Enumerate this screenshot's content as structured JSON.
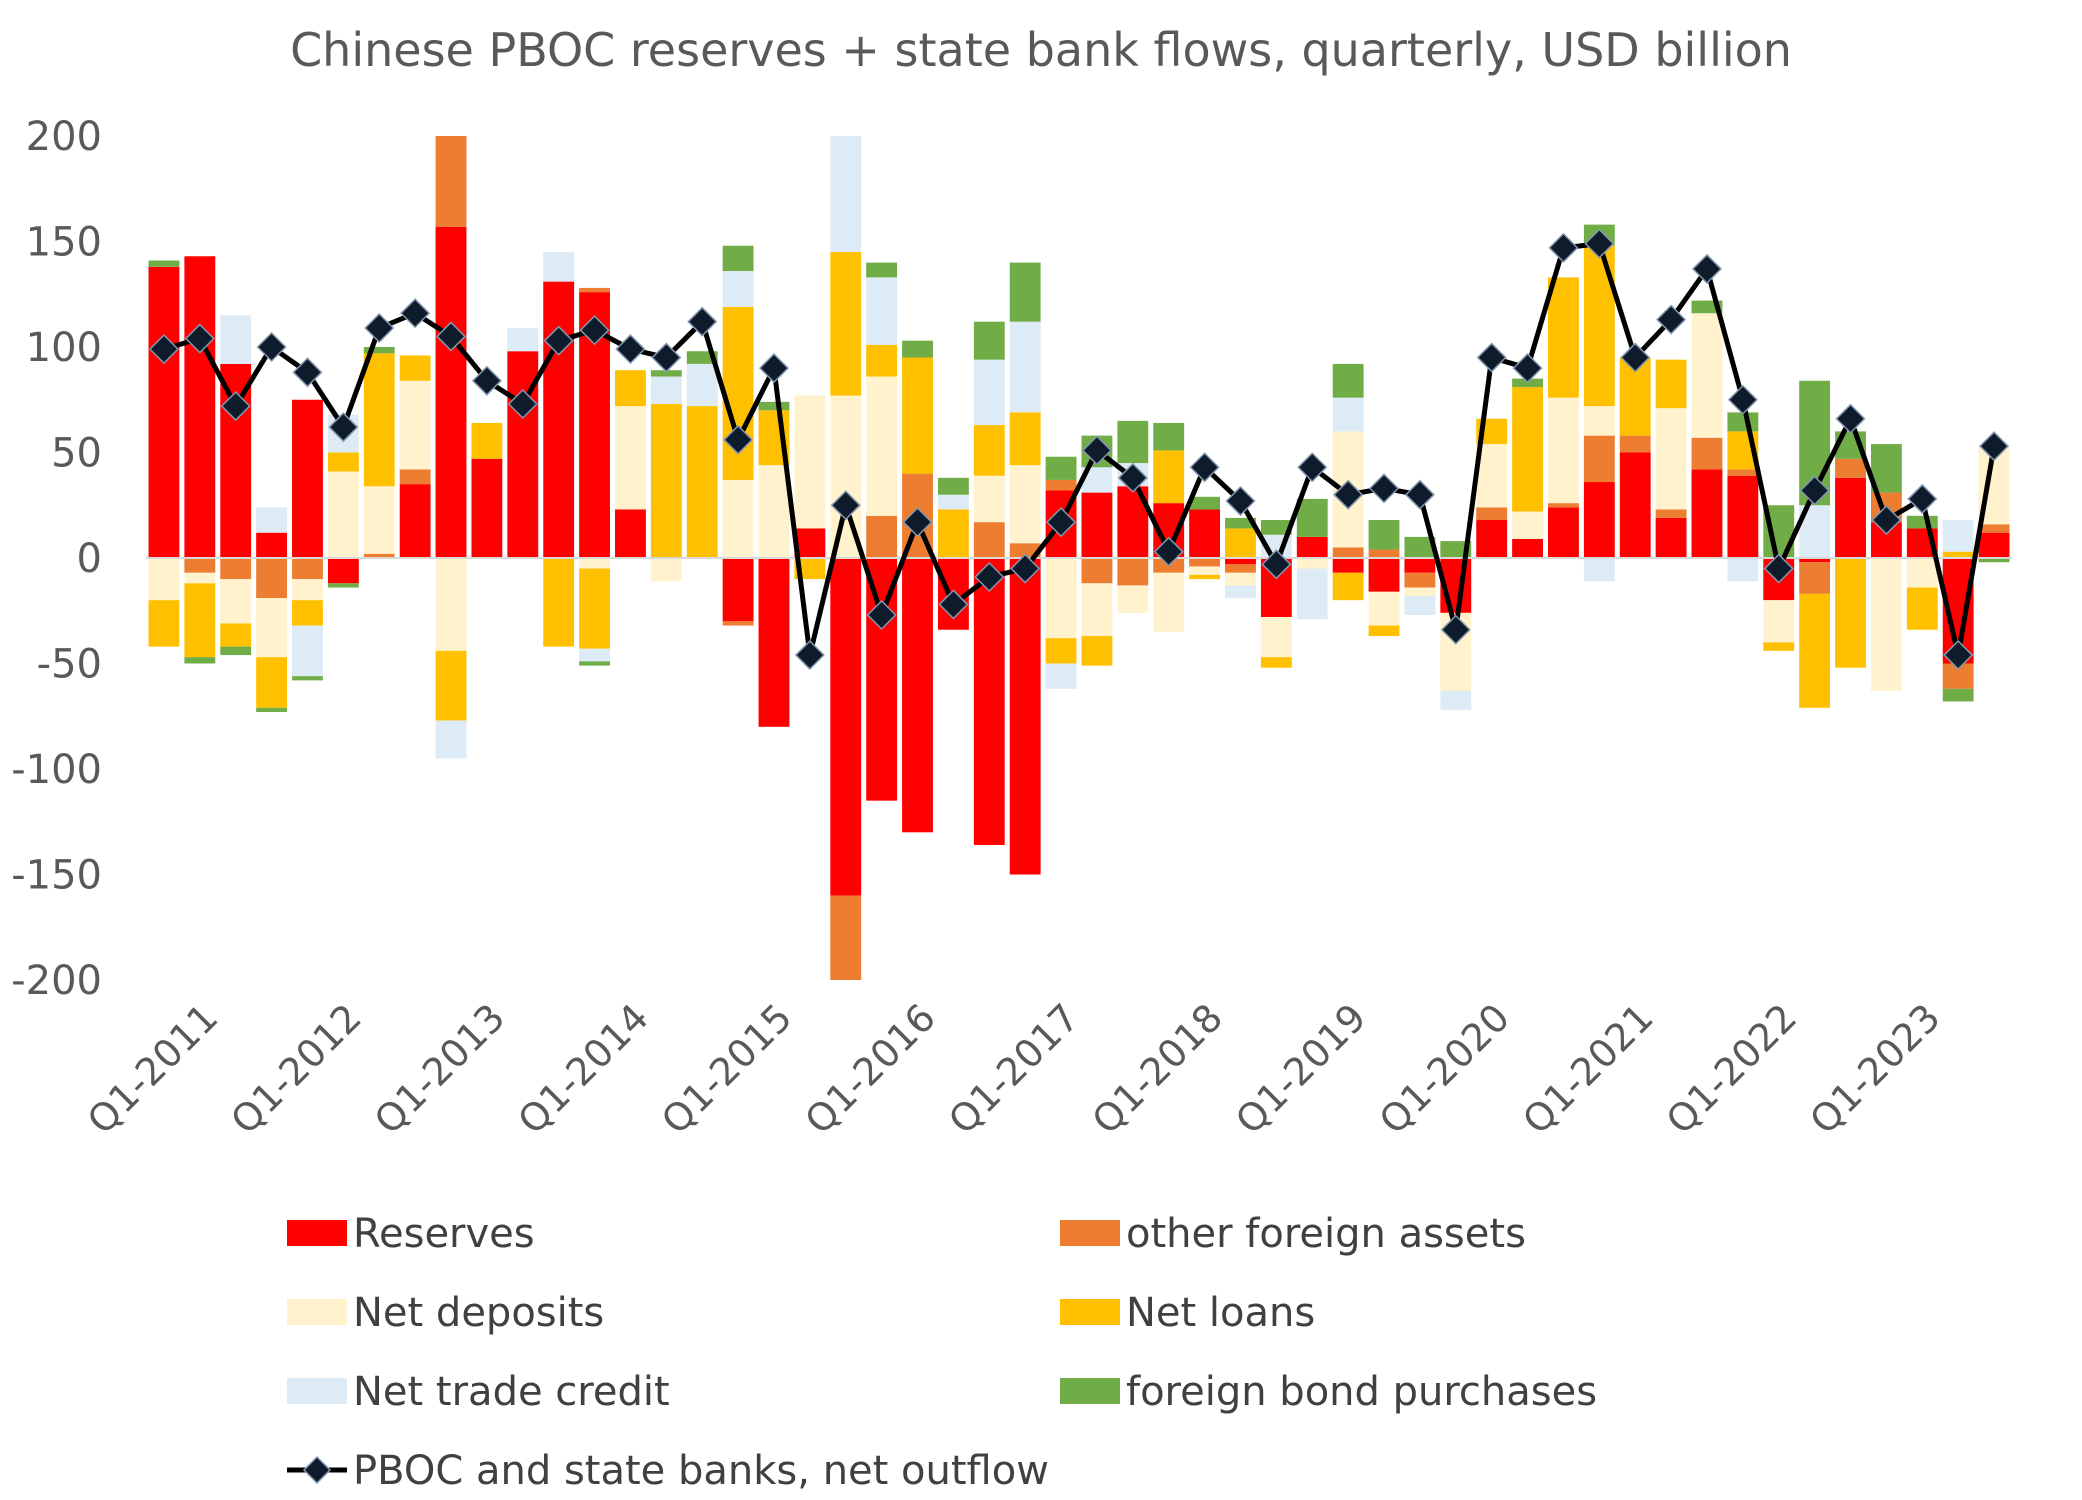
{
  "chart_data": {
    "type": "bar",
    "stacked": true,
    "title": "Chinese PBOC reserves + state bank flows, quarterly, USD billion",
    "xlabel": "",
    "ylabel": "",
    "ylim": [
      -200,
      200
    ],
    "yticks": [
      200,
      150,
      100,
      50,
      0,
      -50,
      -100,
      -150,
      -200
    ],
    "categories": [
      "Q1-2011",
      "Q2-2011",
      "Q3-2011",
      "Q4-2011",
      "Q1-2012",
      "Q2-2012",
      "Q3-2012",
      "Q4-2012",
      "Q1-2013",
      "Q2-2013",
      "Q3-2013",
      "Q4-2013",
      "Q1-2014",
      "Q2-2014",
      "Q3-2014",
      "Q4-2014",
      "Q1-2015",
      "Q2-2015",
      "Q3-2015",
      "Q4-2015",
      "Q1-2016",
      "Q2-2016",
      "Q3-2016",
      "Q4-2016",
      "Q1-2017",
      "Q2-2017",
      "Q3-2017",
      "Q4-2017",
      "Q1-2018",
      "Q2-2018",
      "Q3-2018",
      "Q4-2018",
      "Q1-2019",
      "Q2-2019",
      "Q3-2019",
      "Q4-2019",
      "Q1-2020",
      "Q2-2020",
      "Q3-2020",
      "Q4-2020",
      "Q1-2021",
      "Q2-2021",
      "Q3-2021",
      "Q4-2021",
      "Q1-2022",
      "Q2-2022",
      "Q3-2022",
      "Q4-2022",
      "Q1-2023",
      "Q2-2023",
      "Q3-2023",
      "Q4-2023"
    ],
    "xtick_labels": [
      "Q1-2011",
      "Q1-2012",
      "Q1-2013",
      "Q1-2014",
      "Q1-2015",
      "Q1-2016",
      "Q1-2017",
      "Q1-2018",
      "Q1-2019",
      "Q1-2020",
      "Q1-2021",
      "Q1-2022",
      "Q1-2023"
    ],
    "series": [
      {
        "name": "Reserves",
        "color": "#ff0000",
        "values": [
          138,
          143,
          92,
          12,
          75,
          -12,
          0,
          35,
          157,
          47,
          98,
          131,
          126,
          23,
          0,
          0,
          -30,
          -80,
          14,
          -160,
          -115,
          -130,
          -34,
          -136,
          -150,
          32,
          31,
          34,
          26,
          23,
          -3,
          -28,
          10,
          -7,
          -16,
          -7,
          -26,
          18,
          9,
          24,
          36,
          50,
          19,
          42,
          39,
          -20,
          -2,
          38,
          17,
          14,
          -50,
          12
        ]
      },
      {
        "name": "other foreign assets",
        "color": "#ed7d31",
        "values": [
          0,
          -7,
          -10,
          -19,
          -10,
          0,
          2,
          7,
          43,
          0,
          0,
          0,
          2,
          0,
          0,
          0,
          -2,
          0,
          0,
          -40,
          20,
          40,
          0,
          17,
          7,
          5,
          -12,
          -13,
          -7,
          -4,
          -4,
          0,
          0,
          5,
          4,
          -7,
          0,
          6,
          0,
          2,
          22,
          8,
          4,
          15,
          3,
          0,
          -15,
          9,
          14,
          0,
          -12,
          4
        ]
      },
      {
        "name": "Net deposits",
        "color": "#fff2cc",
        "values": [
          -20,
          -5,
          -21,
          -28,
          -10,
          41,
          32,
          42,
          -44,
          0,
          0,
          0,
          -5,
          49,
          -11,
          0,
          37,
          44,
          63,
          77,
          66,
          0,
          0,
          22,
          37,
          -38,
          -25,
          -13,
          -28,
          -4,
          -6,
          -19,
          -5,
          55,
          -16,
          -4,
          -37,
          30,
          13,
          50,
          14,
          0,
          48,
          59,
          0,
          -20,
          0,
          0,
          -63,
          -14,
          0,
          37
        ]
      },
      {
        "name": "Net loans",
        "color": "#ffc000",
        "values": [
          -22,
          -35,
          -11,
          -24,
          -12,
          9,
          63,
          12,
          -33,
          17,
          0,
          -42,
          -38,
          17,
          73,
          72,
          82,
          26,
          -10,
          68,
          15,
          55,
          23,
          24,
          25,
          -12,
          -14,
          0,
          25,
          -2,
          14,
          -5,
          0,
          -13,
          -5,
          0,
          0,
          12,
          59,
          57,
          76,
          37,
          23,
          0,
          18,
          -4,
          -54,
          -52,
          0,
          -20,
          3,
          0
        ]
      },
      {
        "name": "Net trade credit",
        "color": "#ddebf7",
        "values": [
          0,
          0,
          23,
          12,
          -24,
          18,
          0,
          0,
          -18,
          0,
          11,
          14,
          -6,
          0,
          13,
          20,
          17,
          0,
          0,
          55,
          32,
          0,
          7,
          31,
          43,
          -12,
          12,
          11,
          0,
          0,
          -6,
          11,
          -24,
          16,
          0,
          -9,
          -9,
          0,
          0,
          0,
          -11,
          0,
          0,
          0,
          -11,
          0,
          25,
          0,
          0,
          0,
          15,
          0
        ]
      },
      {
        "name": "foreign bond purchases",
        "color": "#70ad47",
        "values": [
          3,
          -3,
          -4,
          -2,
          -2,
          -2,
          3,
          0,
          0,
          0,
          0,
          0,
          -2,
          0,
          3,
          6,
          12,
          4,
          0,
          0,
          7,
          8,
          8,
          18,
          28,
          11,
          15,
          20,
          13,
          6,
          5,
          7,
          18,
          16,
          14,
          10,
          8,
          0,
          4,
          0,
          10,
          0,
          0,
          6,
          9,
          25,
          59,
          13,
          23,
          6,
          -6,
          -2
        ]
      }
    ],
    "line": {
      "name": "PBOC and state banks, net outflow",
      "color": "#000000",
      "marker_color": "#0d1b2a",
      "values": [
        99,
        104,
        72,
        100,
        88,
        62,
        109,
        116,
        105,
        84,
        73,
        103,
        108,
        99,
        95,
        112,
        56,
        90,
        -46,
        25,
        -27,
        17,
        -22,
        -9,
        -5,
        17,
        51,
        38,
        3,
        43,
        27,
        -3,
        43,
        30,
        33,
        30,
        -34,
        95,
        90,
        147,
        149,
        95,
        113,
        137,
        75,
        -5,
        32,
        66,
        18,
        28,
        -46,
        53
      ]
    }
  }
}
